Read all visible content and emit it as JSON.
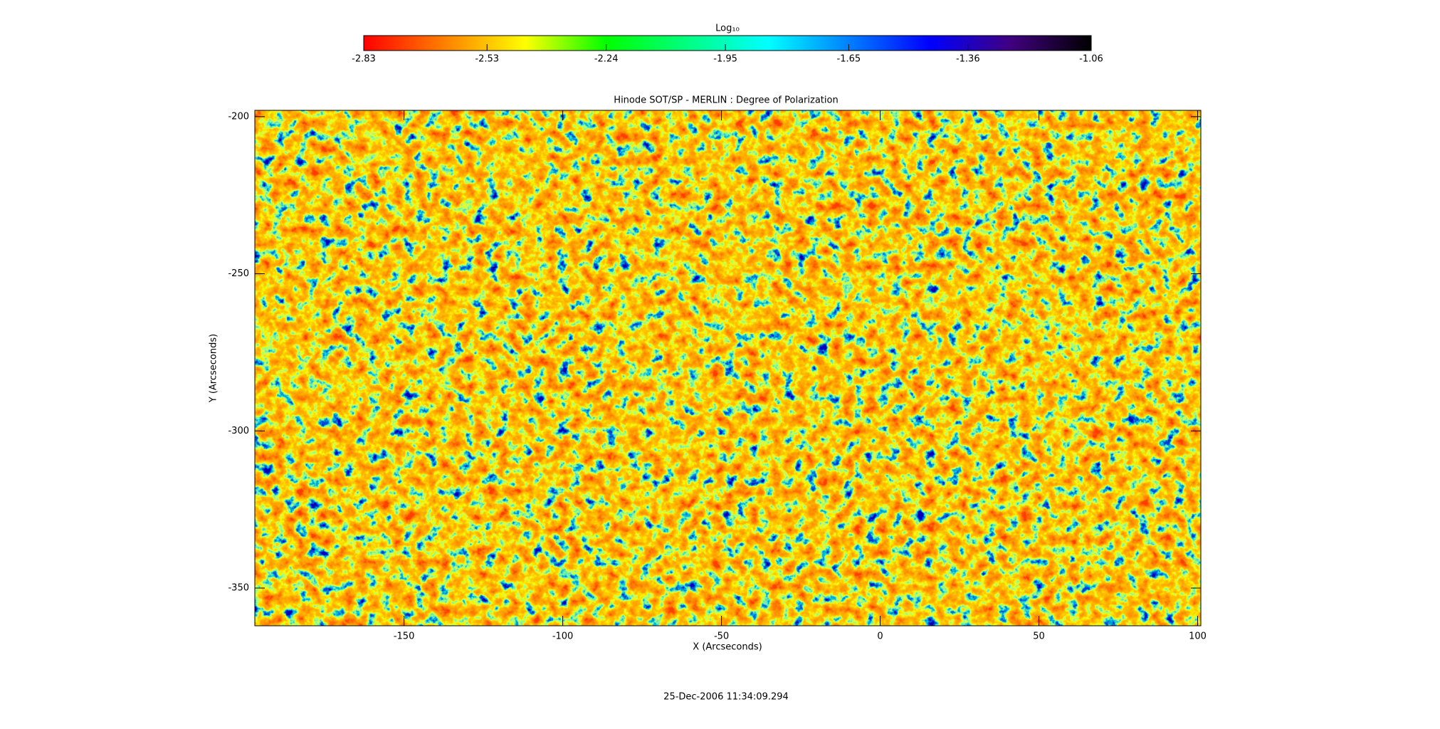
{
  "chart_data": {
    "type": "heatmap",
    "title": "Hinode SOT/SP - MERLIN : Degree of Polarization",
    "xlabel": "X (Arcseconds)",
    "ylabel": "Y (Arcseconds)",
    "xlim": [
      -197,
      101
    ],
    "xticks": [
      -150,
      -100,
      -50,
      0,
      50,
      100
    ],
    "ylim": [
      -362,
      -198
    ],
    "yticks": [
      -350,
      -300,
      -250,
      -200
    ],
    "colorbar": {
      "label": "Log₁₀",
      "clim": [
        -2.83,
        -1.06
      ],
      "ticks": [
        -2.83,
        -2.53,
        -2.24,
        -1.95,
        -1.65,
        -1.36,
        -1.06
      ],
      "colors": [
        "#ff0000",
        "#ff8000",
        "#ffff00",
        "#00ff00",
        "#00ff80",
        "#00ffff",
        "#0080ff",
        "#0000ff",
        "#400080",
        "#000000"
      ]
    },
    "footer": "25-Dec-2006 11:34:09.294"
  }
}
